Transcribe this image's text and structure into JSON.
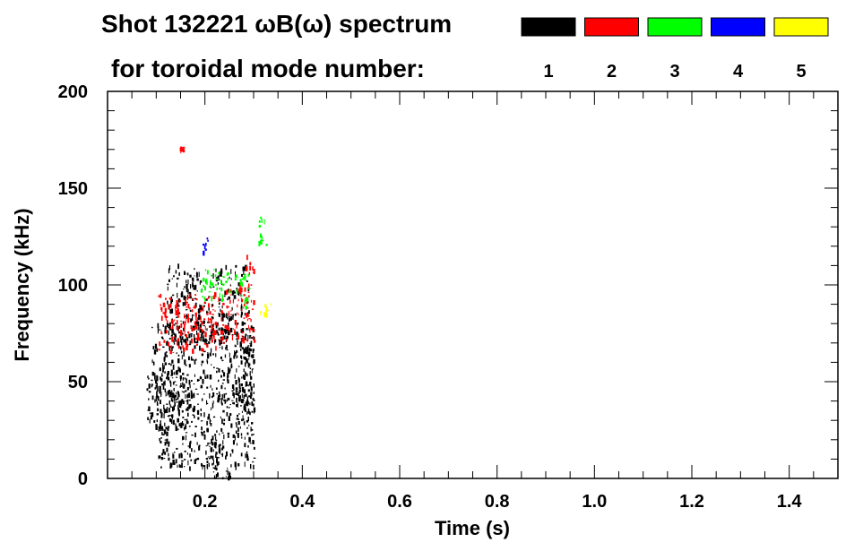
{
  "chart_data": {
    "type": "heatmap",
    "title_line1": "Shot 132221 ωB(ω) spectrum",
    "title_line2": "for toroidal mode number:",
    "xlabel": "Time (s)",
    "ylabel": "Frequency (kHz)",
    "xlim": [
      0.0,
      1.5
    ],
    "ylim": [
      0,
      200
    ],
    "x_ticks": [
      0.2,
      0.4,
      0.6,
      0.8,
      1.0,
      1.2,
      1.4
    ],
    "x_tick_labels": [
      "0.2",
      "0.4",
      "0.6",
      "0.8",
      "1.0",
      "1.2",
      "1.4"
    ],
    "x_minor_step": 0.05,
    "y_ticks": [
      0,
      50,
      100,
      150,
      200
    ],
    "y_tick_labels": [
      "0",
      "50",
      "100",
      "150",
      "200"
    ],
    "y_minor_step": 10,
    "legend": [
      {
        "label": "1",
        "color": "#000000"
      },
      {
        "label": "2",
        "color": "#ff0000"
      },
      {
        "label": "3",
        "color": "#00ff00"
      },
      {
        "label": "4",
        "color": "#0000ff"
      },
      {
        "label": "5",
        "color": "#ffff00"
      }
    ],
    "series": [
      {
        "mode": "1",
        "color": "#000000",
        "regions": [
          {
            "t": [
              0.08,
              0.16
            ],
            "f": [
              25,
              55
            ]
          },
          {
            "t": [
              0.09,
              0.3
            ],
            "f": [
              40,
              80
            ]
          },
          {
            "t": [
              0.1,
              0.3
            ],
            "f": [
              5,
              45
            ]
          },
          {
            "t": [
              0.2,
              0.23
            ],
            "f": [
              0,
              30
            ]
          },
          {
            "t": [
              0.26,
              0.3
            ],
            "f": [
              30,
              70
            ]
          },
          {
            "t": [
              0.22,
              0.27
            ],
            "f": [
              0,
              4
            ]
          },
          {
            "t": [
              0.12,
              0.29
            ],
            "f": [
              70,
              110
            ]
          }
        ]
      },
      {
        "mode": "2",
        "color": "#ff0000",
        "regions": [
          {
            "t": [
              0.1,
              0.24
            ],
            "f": [
              65,
              95
            ]
          },
          {
            "t": [
              0.24,
              0.3
            ],
            "f": [
              70,
              100
            ]
          },
          {
            "t": [
              0.145,
              0.155
            ],
            "f": [
              168,
              172
            ]
          },
          {
            "t": [
              0.28,
              0.3
            ],
            "f": [
              105,
              115
            ]
          }
        ]
      },
      {
        "mode": "3",
        "color": "#00ff00",
        "regions": [
          {
            "t": [
              0.19,
              0.25
            ],
            "f": [
              92,
              108
            ]
          },
          {
            "t": [
              0.26,
              0.29
            ],
            "f": [
              88,
              105
            ]
          },
          {
            "t": [
              0.31,
              0.33
            ],
            "f": [
              120,
              138
            ]
          }
        ]
      },
      {
        "mode": "4",
        "color": "#0000ff",
        "regions": [
          {
            "t": [
              0.195,
              0.205
            ],
            "f": [
              115,
              125
            ]
          }
        ]
      },
      {
        "mode": "5",
        "color": "#ffff00",
        "regions": [
          {
            "t": [
              0.31,
              0.34
            ],
            "f": [
              84,
              90
            ]
          }
        ]
      }
    ]
  }
}
